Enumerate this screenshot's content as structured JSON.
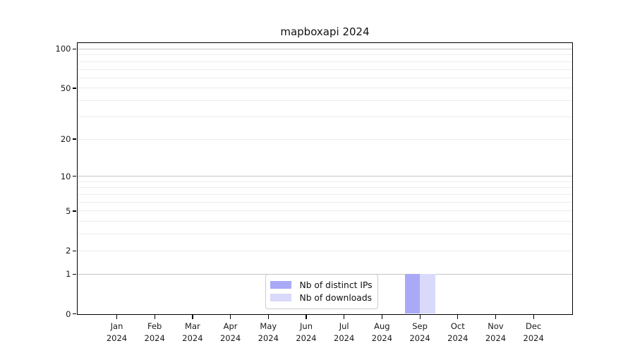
{
  "chart_data": {
    "type": "bar",
    "title": "mapboxapi 2024",
    "categories": [
      "Jan 2024",
      "Feb 2024",
      "Mar 2024",
      "Apr 2024",
      "May 2024",
      "Jun 2024",
      "Jul 2024",
      "Aug 2024",
      "Sep 2024",
      "Oct 2024",
      "Nov 2024",
      "Dec 2024"
    ],
    "x_ticks": [
      {
        "month": "Jan",
        "year": "2024"
      },
      {
        "month": "Feb",
        "year": "2024"
      },
      {
        "month": "Mar",
        "year": "2024"
      },
      {
        "month": "Apr",
        "year": "2024"
      },
      {
        "month": "May",
        "year": "2024"
      },
      {
        "month": "Jun",
        "year": "2024"
      },
      {
        "month": "Jul",
        "year": "2024"
      },
      {
        "month": "Aug",
        "year": "2024"
      },
      {
        "month": "Sep",
        "year": "2024"
      },
      {
        "month": "Oct",
        "year": "2024"
      },
      {
        "month": "Nov",
        "year": "2024"
      },
      {
        "month": "Dec",
        "year": "2024"
      }
    ],
    "series": [
      {
        "name": "Nb of distinct IPs",
        "color": "#a9a9f7",
        "values": [
          0,
          0,
          0,
          0,
          0,
          0,
          0,
          0,
          1,
          0,
          0,
          0
        ]
      },
      {
        "name": "Nb of downloads",
        "color": "#d9d9fa",
        "values": [
          0,
          0,
          0,
          0,
          0,
          0,
          0,
          0,
          1,
          0,
          0,
          0
        ]
      }
    ],
    "xlabel": "",
    "ylabel": "",
    "yscale": "log1p",
    "ylim": [
      0,
      112
    ],
    "y_ticks": [
      0,
      1,
      2,
      5,
      10,
      20,
      50,
      100
    ],
    "grid_major_values": [
      1,
      10,
      100
    ],
    "grid_minor_values": [
      2,
      3,
      4,
      5,
      6,
      7,
      8,
      9,
      20,
      30,
      40,
      50,
      60,
      70,
      80,
      90
    ],
    "grid": "on",
    "legend_position": "lower center"
  },
  "colors": {
    "spine": "#000000",
    "grid_major": "#c6c6c6",
    "grid_minor": "#ececec",
    "legend_border": "#cccccc",
    "background": "#ffffff"
  }
}
